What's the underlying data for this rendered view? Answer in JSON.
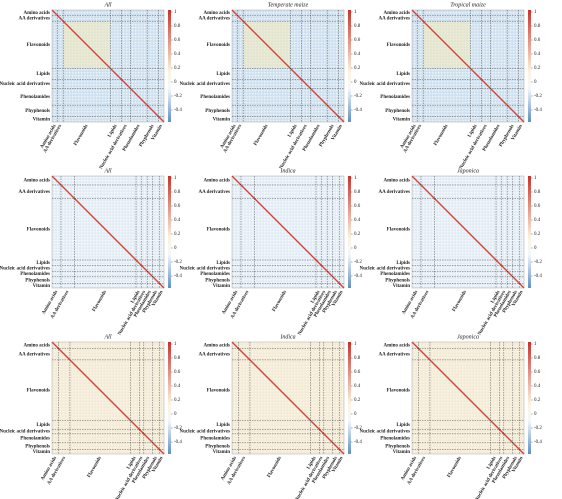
{
  "panels": [
    {
      "title": "All",
      "groups": [
        "Amino acids",
        "AA derivatives",
        "Flavonoids",
        "Lipids",
        "Nucleic acid derivatives",
        "Phenolamides",
        "Phyphenols",
        "Vitamin"
      ],
      "colorbar_ticks": [
        1,
        0.8,
        0.6,
        0.4,
        0.2,
        0,
        -0.2,
        -0.4
      ]
    },
    {
      "title": "Temperate maize",
      "groups": [
        "Amino acids",
        "AA derivatives",
        "Flavonoids",
        "Lipids",
        "Nucleic acid derivatives",
        "Phenolamides",
        "Phyphenols",
        "Vitamin"
      ],
      "colorbar_ticks": [
        1,
        0.8,
        0.6,
        0.4,
        0.2,
        0,
        -0.2,
        -0.4
      ]
    },
    {
      "title": "Tropical maize",
      "groups": [
        "Amino acids",
        "AA derivatives",
        "Flavonoids",
        "Lipids",
        "Nucleic acid derivatives",
        "Phenolamides",
        "Phyphenols",
        "Vitamin"
      ],
      "colorbar_ticks": [
        1,
        0.8,
        0.6,
        0.4,
        0.2,
        0,
        -0.2,
        -0.4
      ]
    },
    {
      "title": "All",
      "groups": [
        "Amino acids",
        "AA derivatives",
        "Flavonoids",
        "Lipids",
        "Nucleic acid derivatives",
        "Phenolamides",
        "Phyphenols",
        "Vitamin"
      ],
      "colorbar_ticks": [
        1,
        0.8,
        0.6,
        0.4,
        0.2,
        0,
        -0.2,
        -0.4
      ]
    },
    {
      "title": "Indica",
      "groups": [
        "Amino acids",
        "AA derivatives",
        "Flavonoids",
        "Lipids",
        "Nucleic acid derivatives",
        "Phenolamides",
        "Phyphenols",
        "Vitamin"
      ],
      "colorbar_ticks": [
        1,
        0.8,
        0.6,
        0.4,
        0.2,
        0,
        -0.2,
        -0.4
      ]
    },
    {
      "title": "Japonica",
      "groups": [
        "Amino acids",
        "AA derivatives",
        "Flavonoids",
        "Lipids",
        "Nucleic acid derivatives",
        "Phenolamides",
        "Phyphenols",
        "Vitamin"
      ],
      "colorbar_ticks": [
        1,
        0.8,
        0.6,
        0.4,
        0.2,
        0,
        -0.2,
        -0.4
      ]
    },
    {
      "title": "All",
      "groups": [
        "Amino acids",
        "AA derivatives",
        "Flavonoids",
        "Lipids",
        "Nucleic acid derivatives",
        "Phenolamides",
        "Phyphenols",
        "Vitamin"
      ],
      "colorbar_ticks": [
        1,
        0.8,
        0.6,
        0.4,
        0.2,
        0,
        -0.2,
        -0.4
      ]
    },
    {
      "title": "Indica",
      "groups": [
        "Amino acids",
        "AA derivatives",
        "Flavonoids",
        "Lipids",
        "Nucleic acid derivatives",
        "Phenolamides",
        "Phyphenols",
        "Vitamin"
      ],
      "colorbar_ticks": [
        1,
        0.8,
        0.6,
        0.4,
        0.2,
        0,
        -0.2,
        -0.4
      ]
    },
    {
      "title": "Japonica",
      "groups": [
        "Amino acids",
        "AA derivatives",
        "Flavonoids",
        "Lipids",
        "Nucleic acid derivatives",
        "Phenolamides",
        "Phyphenols",
        "Vitamin"
      ],
      "colorbar_ticks": [
        1,
        0.8,
        0.6,
        0.4,
        0.2,
        0,
        -0.2,
        -0.4
      ]
    }
  ]
}
